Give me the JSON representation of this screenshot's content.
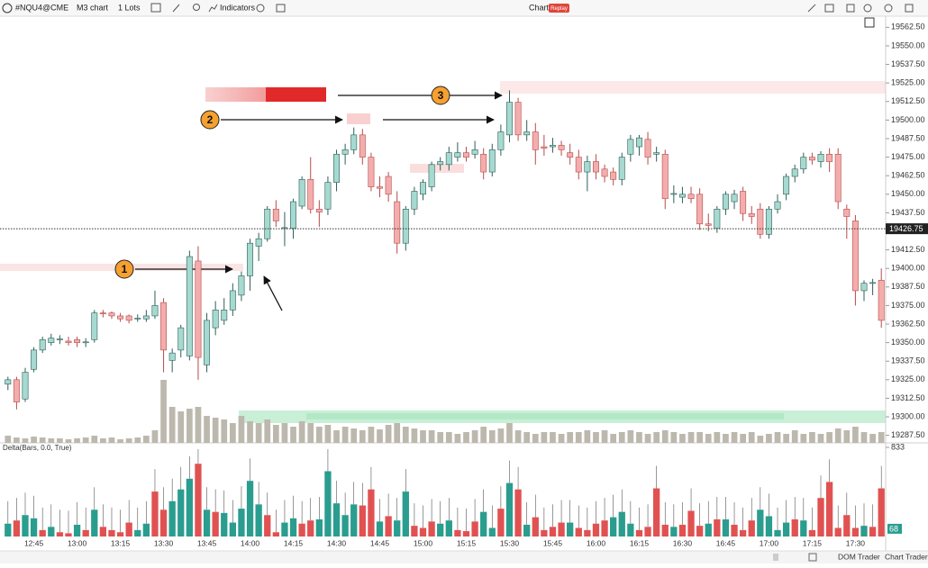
{
  "ui": {
    "symbol": "#NQU4@CME",
    "timeframe": "M3 chart",
    "lots": "1 Lots",
    "indicators": "Indicators",
    "mode": "Chart",
    "replay": "Replay",
    "delta_label": "Delta(Bars, 0.0, True)",
    "footer": [
      "DOM Trader",
      "Chart Trader"
    ]
  },
  "annotations": [
    "1",
    "2",
    "3"
  ],
  "chart_data": {
    "type": "candlestick",
    "categories": [
      null,
      null,
      null,
      "12:45",
      null,
      null,
      null,
      null,
      "13:00",
      null,
      null,
      null,
      null,
      "13:15",
      null,
      null,
      null,
      null,
      "13:30",
      null,
      null,
      null,
      null,
      "13:45",
      null,
      null,
      null,
      null,
      "14:00",
      null,
      null,
      null,
      null,
      "14:15",
      null,
      null,
      null,
      null,
      "14:30",
      null,
      null,
      null,
      null,
      "14:45",
      null,
      null,
      null,
      null,
      "15:00",
      null,
      null,
      null,
      null,
      "15:15",
      null,
      null,
      null,
      null,
      "15:30",
      null,
      null,
      null,
      null,
      "15:45",
      null,
      null,
      null,
      null,
      "16:00",
      null,
      null,
      null,
      null,
      "16:15",
      null,
      null,
      null,
      null,
      "16:30",
      null,
      null,
      null,
      null,
      "16:45",
      null,
      null,
      null,
      null,
      "17:00",
      null,
      null,
      null,
      null,
      "17:15",
      null,
      null,
      null,
      null,
      "17:30",
      null,
      null,
      null
    ],
    "ohlc": [
      [
        19322,
        19327,
        19318,
        19325
      ],
      [
        19325,
        19327,
        19305,
        19310
      ],
      [
        19312,
        19333,
        19310,
        19330
      ],
      [
        19332,
        19347,
        19330,
        19345
      ],
      [
        19345,
        19354,
        19343,
        19352
      ],
      [
        19350,
        19356,
        19348,
        19353
      ],
      [
        19352,
        19355,
        19349,
        19352.5
      ],
      [
        19351,
        19354,
        19348,
        19350
      ],
      [
        19352,
        19354,
        19347,
        19350
      ],
      [
        19350,
        19353,
        19347,
        19350.5
      ],
      [
        19352,
        19372,
        19350,
        19370
      ],
      [
        19370,
        19372,
        19367,
        19369.5
      ],
      [
        19370,
        19371,
        19366,
        19368
      ],
      [
        19368,
        19370,
        19364,
        19366
      ],
      [
        19368,
        19369,
        19363,
        19365
      ],
      [
        19366,
        19369,
        19364,
        19366.5
      ],
      [
        19366,
        19372,
        19364,
        19368
      ],
      [
        19368,
        19385,
        19366,
        19375
      ],
      [
        19377,
        19380,
        19330,
        19345
      ],
      [
        19338,
        19346,
        19330,
        19343
      ],
      [
        19345,
        19362,
        19340,
        19360
      ],
      [
        19341,
        19412,
        19338,
        19408
      ],
      [
        19405,
        19415,
        19325,
        19340
      ],
      [
        19335,
        19370,
        19330,
        19365
      ],
      [
        19360,
        19378,
        19355,
        19372
      ],
      [
        19365,
        19380,
        19362,
        19372
      ],
      [
        19372,
        19390,
        19368,
        19385
      ],
      [
        19382,
        19398,
        19378,
        19395
      ],
      [
        19395,
        19420,
        19385,
        19417
      ],
      [
        19415,
        19424,
        19405,
        19420
      ],
      [
        19420,
        19442,
        19418,
        19440
      ],
      [
        19440,
        19446,
        19428,
        19432
      ],
      [
        19427,
        19438,
        19415,
        19427.5
      ],
      [
        19427,
        19447,
        19420,
        19445
      ],
      [
        19442,
        19462,
        19440,
        19460
      ],
      [
        19460,
        19475,
        19437,
        19440
      ],
      [
        19440,
        19446,
        19428,
        19438
      ],
      [
        19440,
        19462,
        19436,
        19458
      ],
      [
        19458,
        19480,
        19452,
        19477
      ],
      [
        19477,
        19484,
        19470,
        19480
      ],
      [
        19480,
        19495,
        19477,
        19490
      ],
      [
        19490,
        19494,
        19470,
        19475
      ],
      [
        19475,
        19478,
        19452,
        19455
      ],
      [
        19455,
        19462,
        19448,
        19454
      ],
      [
        19462,
        19465,
        19445,
        19450
      ],
      [
        19445,
        19452,
        19410,
        19417
      ],
      [
        19417,
        19442,
        19412,
        19440
      ],
      [
        19440,
        19455,
        19436,
        19452
      ],
      [
        19450,
        19460,
        19446,
        19458
      ],
      [
        19455,
        19472,
        19452,
        19470
      ],
      [
        19470,
        19475,
        19466,
        19472
      ],
      [
        19470,
        19482,
        19466,
        19478
      ],
      [
        19475,
        19485,
        19472,
        19478
      ],
      [
        19478,
        19482,
        19472,
        19475
      ],
      [
        19477,
        19486,
        19474,
        19480
      ],
      [
        19477,
        19481,
        19460,
        19465
      ],
      [
        19465,
        19484,
        19462,
        19480
      ],
      [
        19480,
        19497,
        19476,
        19492
      ],
      [
        19490,
        19520,
        19485,
        19512
      ],
      [
        19512,
        19515,
        19486,
        19490
      ],
      [
        19490,
        19500,
        19486,
        19492
      ],
      [
        19492,
        19498,
        19470,
        19480
      ],
      [
        19482,
        19490,
        19476,
        19481
      ],
      [
        19482,
        19488,
        19478,
        19483
      ],
      [
        19483,
        19486,
        19476,
        19480
      ],
      [
        19478,
        19484,
        19470,
        19475
      ],
      [
        19475,
        19480,
        19460,
        19465
      ],
      [
        19465,
        19476,
        19452,
        19472
      ],
      [
        19472,
        19477,
        19460,
        19465
      ],
      [
        19467,
        19470,
        19458,
        19462
      ],
      [
        19465,
        19468,
        19456,
        19460
      ],
      [
        19460,
        19478,
        19456,
        19475
      ],
      [
        19477,
        19490,
        19472,
        19487
      ],
      [
        19482,
        19490,
        19476,
        19488
      ],
      [
        19487,
        19492,
        19470,
        19475
      ],
      [
        19477,
        19482,
        19472,
        19478
      ],
      [
        19477,
        19480,
        19440,
        19447
      ],
      [
        19450,
        19456,
        19444,
        19450.5
      ],
      [
        19448,
        19455,
        19444,
        19450
      ],
      [
        19450,
        19455,
        19444,
        19447
      ],
      [
        19450,
        19454,
        19426,
        19430
      ],
      [
        19430,
        19437,
        19425,
        19429
      ],
      [
        19427,
        19442,
        19424,
        19440
      ],
      [
        19440,
        19452,
        19436,
        19450
      ],
      [
        19445,
        19453,
        19440,
        19450
      ],
      [
        19452,
        19455,
        19432,
        19437
      ],
      [
        19437,
        19442,
        19430,
        19435
      ],
      [
        19440,
        19444,
        19420,
        19423
      ],
      [
        19423,
        19442,
        19420,
        19440
      ],
      [
        19440,
        19450,
        19437,
        19445
      ],
      [
        19450,
        19464,
        19446,
        19462
      ],
      [
        19462,
        19470,
        19458,
        19467
      ],
      [
        19467,
        19478,
        19464,
        19475
      ],
      [
        19475,
        19478,
        19470,
        19473
      ],
      [
        19472,
        19479,
        19468,
        19477
      ],
      [
        19477,
        19481,
        19465,
        19472
      ],
      [
        19477,
        19481,
        19440,
        19445
      ],
      [
        19440,
        19443,
        19420,
        19435
      ],
      [
        19432,
        19436,
        19375,
        19385
      ],
      [
        19385,
        19392,
        19378,
        19390
      ],
      [
        19390,
        19393,
        19382,
        19390.5
      ],
      [
        19392,
        19400,
        19360,
        19365
      ]
    ],
    "up_color": "#a6d9cf",
    "up_border": "#2f5f58",
    "down_color": "#f3adad",
    "down_border": "#b84a4a",
    "ylim": [
      19280,
      19570
    ],
    "yticks": [
      {
        "value": 19287.5,
        "label": "19287.50"
      },
      {
        "value": 19300,
        "label": "19300.00"
      },
      {
        "value": 19312.5,
        "label": "19312.50"
      },
      {
        "value": 19325,
        "label": "19325.00"
      },
      {
        "value": 19337.5,
        "label": "19337.50"
      },
      {
        "value": 19350,
        "label": "19350.00"
      },
      {
        "value": 19362.5,
        "label": "19362.50"
      },
      {
        "value": 19375,
        "label": "19375.00"
      },
      {
        "value": 19387.5,
        "label": "19387.50"
      },
      {
        "value": 19400,
        "label": "19400.00"
      },
      {
        "value": 19412.5,
        "label": "19412.50"
      },
      {
        "value": 19425,
        "label": "19425.00"
      },
      {
        "value": 19437.5,
        "label": "19437.50"
      },
      {
        "value": 19450,
        "label": "19450.00"
      },
      {
        "value": 19462.5,
        "label": "19462.50"
      },
      {
        "value": 19475,
        "label": "19475.00"
      },
      {
        "value": 19487.5,
        "label": "19487.50"
      },
      {
        "value": 19500,
        "label": "19500.00"
      },
      {
        "value": 19512.5,
        "label": "19512.50"
      },
      {
        "value": 19525,
        "label": "19525.00"
      },
      {
        "value": 19537.5,
        "label": "19537.50"
      },
      {
        "value": 19550,
        "label": "19550.00"
      },
      {
        "value": 19562.5,
        "label": "19562.50"
      }
    ],
    "last_price": 19426.75,
    "volume": [
      8,
      6,
      5,
      7,
      6,
      5,
      5,
      4,
      5,
      6,
      8,
      5,
      6,
      4,
      5,
      6,
      8,
      14,
      70,
      40,
      35,
      38,
      40,
      30,
      28,
      26,
      22,
      30,
      24,
      22,
      26,
      20,
      22,
      18,
      24,
      22,
      18,
      20,
      14,
      18,
      16,
      14,
      18,
      15,
      20,
      22,
      18,
      16,
      14,
      14,
      12,
      12,
      10,
      12,
      14,
      18,
      14,
      16,
      22,
      14,
      12,
      10,
      12,
      12,
      10,
      12,
      12,
      14,
      12,
      14,
      10,
      12,
      14,
      12,
      10,
      12,
      14,
      12,
      10,
      12,
      12,
      10,
      12,
      10,
      12,
      10,
      12,
      8,
      10,
      12,
      10,
      14,
      10,
      12,
      10,
      12,
      16,
      14,
      18,
      12,
      10,
      12
    ],
    "volume_color": "#bdb8ad",
    "vlim": [
      0,
      100
    ],
    "delta": [
      120,
      -150,
      200,
      170,
      -60,
      90,
      -40,
      -30,
      110,
      -60,
      250,
      -90,
      -60,
      -40,
      -130,
      60,
      120,
      -420,
      -250,
      330,
      440,
      540,
      -680,
      250,
      -230,
      220,
      130,
      260,
      520,
      300,
      -200,
      -40,
      130,
      170,
      -120,
      -150,
      160,
      610,
      310,
      200,
      300,
      -290,
      -440,
      140,
      -190,
      150,
      420,
      -100,
      -80,
      -140,
      120,
      150,
      -60,
      -50,
      -140,
      230,
      80,
      -260,
      500,
      -440,
      110,
      -180,
      -60,
      -90,
      -130,
      130,
      -80,
      -60,
      -120,
      -150,
      180,
      230,
      120,
      -60,
      -90,
      -450,
      -110,
      90,
      -110,
      -240,
      -100,
      120,
      -160,
      160,
      -110,
      -60,
      -150,
      250,
      190,
      60,
      130,
      -160,
      150,
      -60,
      -360,
      -510,
      -80,
      -200,
      -80,
      100,
      -90,
      -450
    ],
    "delta_up_color": "#2a9d8f",
    "delta_down_color": "#e05252",
    "delta_ylim": [
      0,
      833
    ],
    "delta_yticks": [
      833
    ],
    "delta_current": 68
  }
}
